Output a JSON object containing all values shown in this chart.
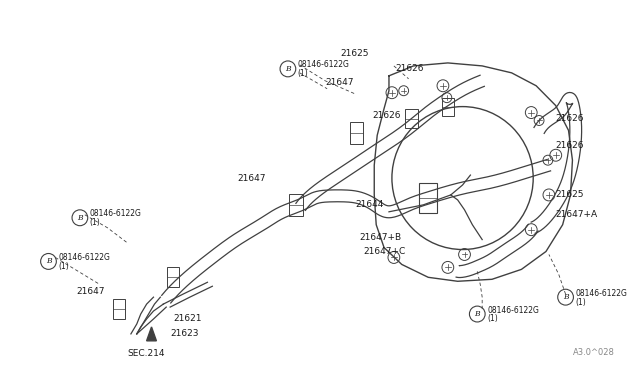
{
  "bg_color": "#ffffff",
  "line_color": "#404040",
  "text_color": "#1a1a1a",
  "fig_width": 6.4,
  "fig_height": 3.72,
  "dpi": 100,
  "watermark": "A3.0^028",
  "xlim": [
    0,
    640
  ],
  "ylim": [
    0,
    372
  ]
}
